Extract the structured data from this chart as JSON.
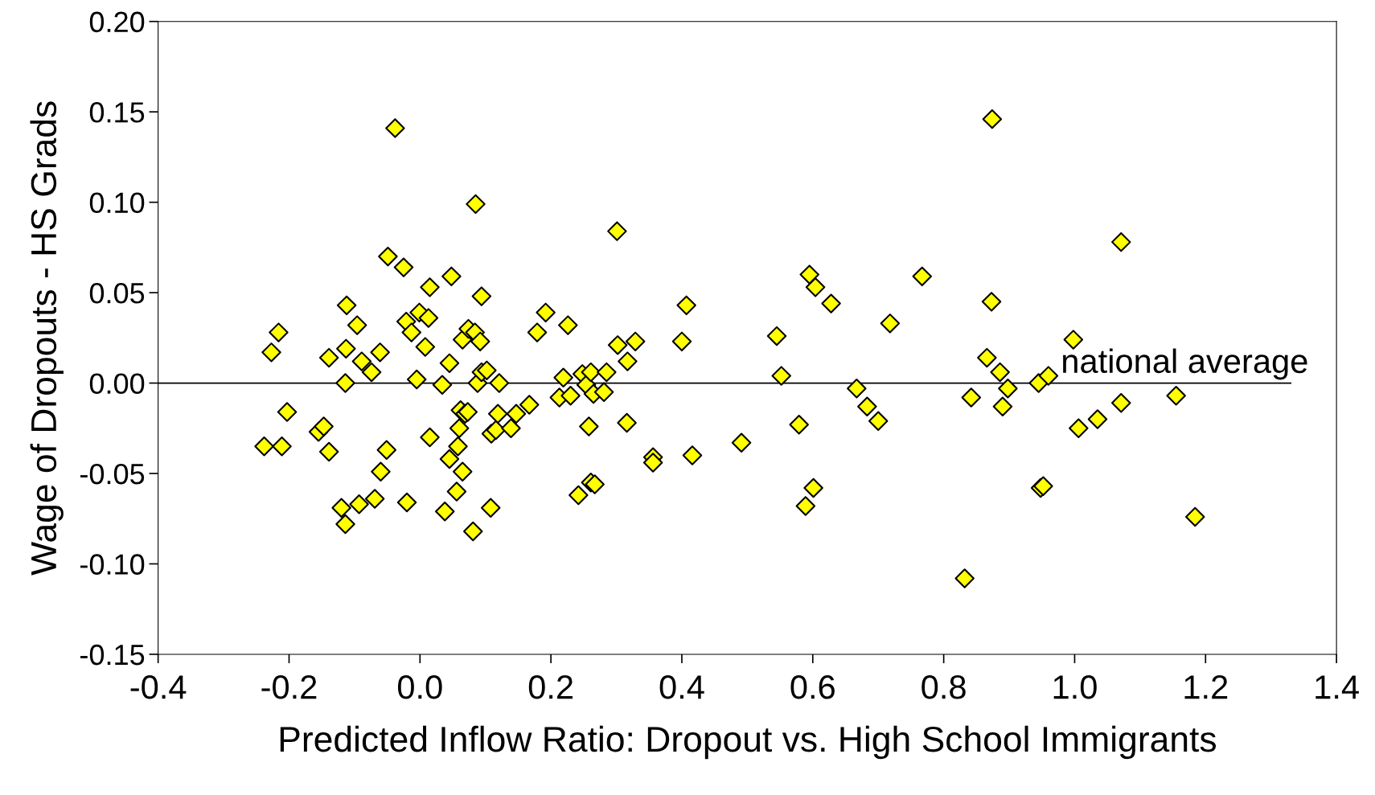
{
  "chart_data": {
    "type": "scatter",
    "xlabel": "Predicted Inflow Ratio: Dropout vs. High School Immigrants",
    "ylabel": "Wage of Dropouts - HS Grads",
    "xlim": [
      -0.4,
      1.4
    ],
    "ylim": [
      -0.15,
      0.2
    ],
    "xticks": [
      {
        "value": -0.4,
        "label": "-0.4"
      },
      {
        "value": -0.2,
        "label": "-0.2"
      },
      {
        "value": 0,
        "label": "0.0"
      },
      {
        "value": 0.2,
        "label": "0.2"
      },
      {
        "value": 0.4,
        "label": "0.4"
      },
      {
        "value": 0.6,
        "label": "0.6"
      },
      {
        "value": 0.8,
        "label": "0.8"
      },
      {
        "value": 1.0,
        "label": "1.0"
      },
      {
        "value": 1.2,
        "label": "1.2"
      },
      {
        "value": 1.4,
        "label": "1.4"
      }
    ],
    "yticks": [
      {
        "value": -0.15,
        "label": "-0.15"
      },
      {
        "value": -0.1,
        "label": "-0.10"
      },
      {
        "value": -0.05,
        "label": "-0.05"
      },
      {
        "value": 0,
        "label": "0.00"
      },
      {
        "value": 0.05,
        "label": "0.05"
      },
      {
        "value": 0.1,
        "label": "0.10"
      },
      {
        "value": 0.15,
        "label": "0.15"
      },
      {
        "value": 0.2,
        "label": "0.20"
      }
    ],
    "grid": false,
    "legend": false,
    "marker": "diamond",
    "series": [
      {
        "color": "#ffff00",
        "x": [
          -0.238,
          -0.227,
          -0.216,
          -0.211,
          -0.203,
          -0.155,
          -0.147,
          -0.139,
          -0.139,
          -0.12,
          -0.114,
          -0.114,
          -0.112,
          -0.113,
          -0.096,
          -0.093,
          -0.089,
          -0.074,
          -0.069,
          -0.061,
          -0.06,
          -0.051,
          -0.049,
          -0.038,
          -0.025,
          -0.021,
          -0.02,
          -0.013,
          -0.005,
          -0.001,
          0.008,
          0.013,
          0.015,
          0.015,
          0.034,
          0.038,
          0.045,
          0.045,
          0.048,
          0.056,
          0.058,
          0.06,
          0.062,
          0.065,
          0.065,
          0.069,
          0.073,
          0.074,
          0.081,
          0.084,
          0.085,
          0.088,
          0.092,
          0.094,
          0.094,
          0.102,
          0.108,
          0.109,
          0.116,
          0.119,
          0.121,
          0.139,
          0.147,
          0.167,
          0.179,
          0.192,
          0.213,
          0.219,
          0.226,
          0.23,
          0.242,
          0.248,
          0.254,
          0.258,
          0.261,
          0.261,
          0.265,
          0.267,
          0.281,
          0.285,
          0.301,
          0.302,
          0.316,
          0.317,
          0.329,
          0.356,
          0.356,
          0.4,
          0.407,
          0.416,
          0.491,
          0.545,
          0.552,
          0.579,
          0.589,
          0.595,
          0.601,
          0.604,
          0.628,
          0.667,
          0.683,
          0.7,
          0.718,
          0.767,
          0.832,
          0.842,
          0.866,
          0.873,
          0.874,
          0.886,
          0.89,
          0.898,
          0.945,
          0.948,
          0.952,
          0.96,
          0.998,
          1.006,
          1.035,
          1.071,
          1.071,
          1.155,
          1.184
        ],
        "values": [
          -0.035,
          0.017,
          0.028,
          -0.035,
          -0.016,
          -0.027,
          -0.024,
          0.014,
          -0.038,
          -0.069,
          0.0,
          -0.078,
          0.043,
          0.019,
          0.032,
          -0.067,
          0.012,
          0.006,
          -0.064,
          0.017,
          -0.049,
          -0.037,
          0.07,
          0.141,
          0.064,
          0.034,
          -0.066,
          0.028,
          0.002,
          0.039,
          0.02,
          0.036,
          0.053,
          -0.03,
          -0.001,
          -0.071,
          0.011,
          -0.042,
          0.059,
          -0.06,
          -0.035,
          -0.025,
          -0.015,
          0.024,
          -0.049,
          -0.017,
          -0.016,
          0.03,
          -0.082,
          0.028,
          0.099,
          0.0,
          0.023,
          0.048,
          0.006,
          0.007,
          -0.069,
          -0.028,
          -0.026,
          -0.017,
          0.0,
          -0.025,
          -0.017,
          -0.012,
          0.028,
          0.039,
          -0.008,
          0.003,
          0.032,
          -0.007,
          -0.062,
          0.005,
          -0.001,
          -0.024,
          0.006,
          -0.055,
          -0.006,
          -0.056,
          -0.005,
          0.006,
          0.084,
          0.021,
          -0.022,
          0.012,
          0.023,
          -0.041,
          -0.044,
          0.023,
          0.043,
          -0.04,
          -0.033,
          0.026,
          0.004,
          -0.023,
          -0.068,
          0.06,
          -0.058,
          0.053,
          0.044,
          -0.003,
          -0.013,
          -0.021,
          0.033,
          0.059,
          -0.108,
          -0.008,
          0.014,
          0.045,
          0.146,
          0.006,
          -0.013,
          -0.003,
          0.0,
          -0.058,
          -0.057,
          0.004,
          0.024,
          -0.025,
          -0.02,
          0.078,
          -0.011,
          -0.007,
          -0.074
        ]
      },
      {
        "type": "line",
        "name": "national average",
        "color": "#000000",
        "marker": "none",
        "x": [
          -0.4,
          1.33
        ],
        "values": [
          0,
          0
        ]
      }
    ]
  }
}
